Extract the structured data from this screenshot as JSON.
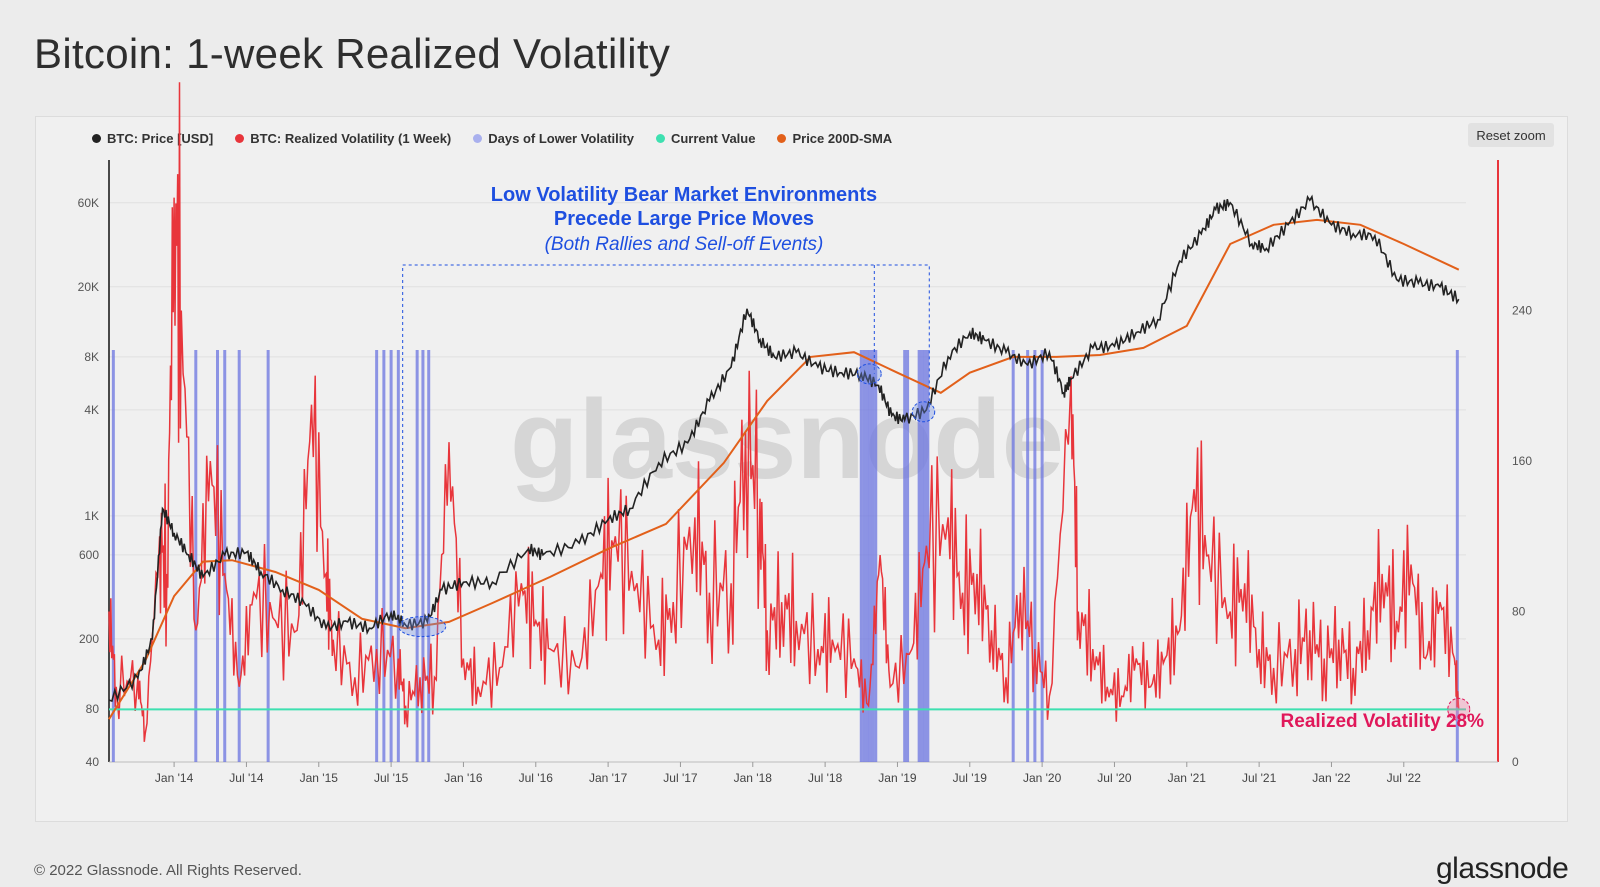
{
  "title": "Bitcoin: 1-week Realized Volatility",
  "reset_zoom_label": "Reset zoom",
  "footer": {
    "copyright": "© 2022 Glassnode. All Rights Reserved.",
    "brand": "glassnode"
  },
  "watermark": "glassnode",
  "colors": {
    "price": "#222222",
    "volatility": "#e8353b",
    "lower_vol_days": "#6b74e0",
    "current_value": "#3ee0b0",
    "sma": "#e2601a",
    "annotation_blue": "#1e4fe0",
    "highlight_pink": "#e0185a"
  },
  "legend": [
    {
      "label": "BTC: Price [USD]",
      "color": "#222222"
    },
    {
      "label": "BTC: Realized Volatility (1 Week)",
      "color": "#e8353b"
    },
    {
      "label": "Days of Lower Volatility",
      "color": "#a9b0ee"
    },
    {
      "label": "Current Value",
      "color": "#3ee0b0"
    },
    {
      "label": "Price 200D-SMA",
      "color": "#e2601a"
    }
  ],
  "annotation": {
    "line1": "Low Volatility Bear Market Environments",
    "line2": "Precede Large Price Moves",
    "line3": "(Both Rallies and Sell-off Events)"
  },
  "current_label": "Realized Volatility 28%",
  "chart_data": {
    "type": "line",
    "x_range": [
      "2013-07",
      "2022-11"
    ],
    "x_ticks": [
      "Jan '14",
      "Jul '14",
      "Jan '15",
      "Jul '15",
      "Jan '16",
      "Jul '16",
      "Jan '17",
      "Jul '17",
      "Jan '18",
      "Jul '18",
      "Jan '19",
      "Jul '19",
      "Jan '20",
      "Jul '20",
      "Jan '21",
      "Jul '21",
      "Jan '22",
      "Jul '22"
    ],
    "y_left": {
      "scale": "log",
      "ticks": [
        "40",
        "80",
        "200",
        "600",
        "1K",
        "4K",
        "8K",
        "20K",
        "60K"
      ],
      "tick_values": [
        40,
        80,
        200,
        600,
        1000,
        4000,
        8000,
        20000,
        60000
      ]
    },
    "y_right": {
      "scale": "linear",
      "range": [
        0,
        320
      ],
      "ticks": [
        0,
        80,
        160,
        240
      ]
    },
    "current_value": 28,
    "price_series": {
      "name": "BTC: Price [USD]",
      "x": [
        2013.55,
        2013.75,
        2013.85,
        2013.92,
        2014.0,
        2014.1,
        2014.2,
        2014.35,
        2014.5,
        2014.6,
        2014.75,
        2014.9,
        2015.05,
        2015.2,
        2015.35,
        2015.5,
        2015.6,
        2015.75,
        2015.85,
        2016.0,
        2016.2,
        2016.45,
        2016.55,
        2016.8,
        2017.0,
        2017.15,
        2017.35,
        2017.55,
        2017.7,
        2017.85,
        2017.96,
        2018.05,
        2018.15,
        2018.3,
        2018.45,
        2018.6,
        2018.75,
        2018.87,
        2018.96,
        2019.05,
        2019.2,
        2019.35,
        2019.5,
        2019.6,
        2019.75,
        2019.9,
        2020.05,
        2020.15,
        2020.2,
        2020.35,
        2020.5,
        2020.65,
        2020.8,
        2020.95,
        2021.1,
        2021.2,
        2021.3,
        2021.45,
        2021.55,
        2021.7,
        2021.85,
        2022.0,
        2022.15,
        2022.3,
        2022.45,
        2022.6,
        2022.75,
        2022.88
      ],
      "y": [
        90,
        120,
        200,
        1100,
        800,
        600,
        450,
        600,
        620,
        480,
        380,
        320,
        230,
        250,
        230,
        280,
        240,
        250,
        380,
        420,
        420,
        650,
        600,
        700,
        950,
        1100,
        2000,
        2600,
        4500,
        7000,
        15000,
        10000,
        8000,
        8500,
        7000,
        6500,
        6400,
        5500,
        3700,
        3500,
        4000,
        8000,
        11000,
        10000,
        8500,
        7200,
        8500,
        5000,
        6000,
        9000,
        9200,
        11000,
        13000,
        28000,
        40000,
        55000,
        60000,
        35000,
        33000,
        45000,
        62000,
        45000,
        40000,
        39000,
        22000,
        21000,
        20000,
        17000
      ]
    },
    "sma_series": {
      "name": "Price 200D-SMA",
      "x": [
        2013.55,
        2013.8,
        2014.0,
        2014.2,
        2014.4,
        2014.7,
        2015.0,
        2015.3,
        2015.6,
        2015.9,
        2016.2,
        2016.6,
        2017.0,
        2017.4,
        2017.8,
        2018.1,
        2018.4,
        2018.7,
        2019.0,
        2019.3,
        2019.5,
        2019.8,
        2020.1,
        2020.4,
        2020.7,
        2021.0,
        2021.3,
        2021.6,
        2021.9,
        2022.2,
        2022.5,
        2022.88
      ],
      "y": [
        70,
        150,
        350,
        550,
        560,
        480,
        380,
        260,
        230,
        250,
        320,
        450,
        650,
        900,
        2000,
        4500,
        8000,
        8500,
        6500,
        5000,
        6500,
        8000,
        8000,
        8200,
        9000,
        12000,
        35000,
        45000,
        48000,
        45000,
        35000,
        25000
      ]
    },
    "volatility_series": {
      "name": "BTC: Realized Volatility (1 Week)",
      "peaks": [
        [
          2013.55,
          80
        ],
        [
          2013.6,
          40
        ],
        [
          2013.75,
          45
        ],
        [
          2013.8,
          15
        ],
        [
          2013.9,
          120
        ],
        [
          2013.95,
          100
        ],
        [
          2014.0,
          300
        ],
        [
          2014.05,
          240
        ],
        [
          2014.15,
          70
        ],
        [
          2014.25,
          160
        ],
        [
          2014.35,
          100
        ],
        [
          2014.45,
          40
        ],
        [
          2014.55,
          90
        ],
        [
          2014.7,
          75
        ],
        [
          2014.85,
          70
        ],
        [
          2014.95,
          190
        ],
        [
          2015.05,
          100
        ],
        [
          2015.1,
          65
        ],
        [
          2015.25,
          45
        ],
        [
          2015.4,
          60
        ],
        [
          2015.55,
          55
        ],
        [
          2015.6,
          30
        ],
        [
          2015.7,
          45
        ],
        [
          2015.8,
          45
        ],
        [
          2015.9,
          170
        ],
        [
          2016.0,
          55
        ],
        [
          2016.1,
          40
        ],
        [
          2016.25,
          50
        ],
        [
          2016.4,
          95
        ],
        [
          2016.5,
          75
        ],
        [
          2016.6,
          60
        ],
        [
          2016.8,
          50
        ],
        [
          2016.95,
          100
        ],
        [
          2017.05,
          120
        ],
        [
          2017.2,
          95
        ],
        [
          2017.35,
          65
        ],
        [
          2017.45,
          85
        ],
        [
          2017.6,
          130
        ],
        [
          2017.7,
          90
        ],
        [
          2017.85,
          95
        ],
        [
          2017.95,
          175
        ],
        [
          2018.05,
          140
        ],
        [
          2018.1,
          70
        ],
        [
          2018.2,
          85
        ],
        [
          2018.3,
          75
        ],
        [
          2018.45,
          60
        ],
        [
          2018.55,
          65
        ],
        [
          2018.7,
          55
        ],
        [
          2018.8,
          30
        ],
        [
          2018.88,
          110
        ],
        [
          2018.95,
          40
        ],
        [
          2019.1,
          60
        ],
        [
          2019.2,
          115
        ],
        [
          2019.35,
          130
        ],
        [
          2019.45,
          90
        ],
        [
          2019.55,
          100
        ],
        [
          2019.65,
          70
        ],
        [
          2019.75,
          45
        ],
        [
          2019.85,
          90
        ],
        [
          2019.95,
          60
        ],
        [
          2020.05,
          35
        ],
        [
          2020.2,
          205
        ],
        [
          2020.25,
          80
        ],
        [
          2020.35,
          60
        ],
        [
          2020.45,
          40
        ],
        [
          2020.55,
          35
        ],
        [
          2020.65,
          55
        ],
        [
          2020.75,
          40
        ],
        [
          2020.85,
          55
        ],
        [
          2020.95,
          70
        ],
        [
          2021.05,
          145
        ],
        [
          2021.15,
          110
        ],
        [
          2021.3,
          80
        ],
        [
          2021.4,
          95
        ],
        [
          2021.5,
          60
        ],
        [
          2021.6,
          50
        ],
        [
          2021.75,
          60
        ],
        [
          2021.85,
          70
        ],
        [
          2021.95,
          55
        ],
        [
          2022.05,
          65
        ],
        [
          2022.15,
          50
        ],
        [
          2022.25,
          70
        ],
        [
          2022.35,
          100
        ],
        [
          2022.45,
          75
        ],
        [
          2022.55,
          105
        ],
        [
          2022.65,
          55
        ],
        [
          2022.75,
          85
        ],
        [
          2022.85,
          55
        ],
        [
          2022.88,
          28
        ]
      ]
    },
    "lower_vol_days": [
      2013.58,
      2014.15,
      2014.3,
      2014.35,
      2014.45,
      2014.65,
      2015.4,
      2015.45,
      2015.5,
      2015.55,
      2015.68,
      2015.72,
      2015.76,
      2018.75,
      2018.77,
      2018.79,
      2018.81,
      2018.83,
      2018.85,
      2019.05,
      2019.07,
      2019.15,
      2019.17,
      2019.19,
      2019.21,
      2019.8,
      2019.9,
      2019.95,
      2020.0,
      2022.87
    ],
    "annotation_box_ranges": [
      [
        2015.58,
        2018.84
      ],
      [
        2018.84,
        2019.22
      ]
    ]
  }
}
